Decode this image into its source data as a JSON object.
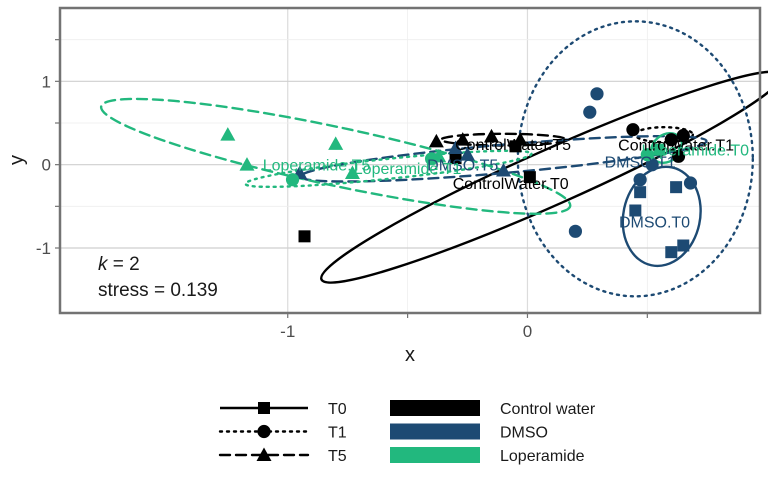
{
  "chart_data": {
    "type": "scatter",
    "xlabel": "x",
    "ylabel": "y",
    "xlim": [
      -1.95,
      0.97
    ],
    "ylim": [
      -1.78,
      1.88
    ],
    "x_ticks": [
      -1,
      -0.5,
      0,
      0.5
    ],
    "x_tick_labels": [
      "-1",
      "",
      "0",
      ""
    ],
    "y_ticks": [
      -1,
      -0.5,
      0,
      0.5,
      1,
      1.5
    ],
    "y_tick_labels": [
      "-1",
      "",
      "0",
      "",
      "1",
      ""
    ],
    "grid": true,
    "colors": {
      "Control water": "#000000",
      "DMSO": "#1d4a73",
      "Loperamide": "#22b87e"
    },
    "annotations": {
      "k": "k",
      "k_value": " = 2",
      "stress": "stress = 0.139"
    },
    "legend": {
      "placement": "bottom",
      "times": [
        {
          "label": "T0",
          "shape": "square",
          "linestyle": "solid"
        },
        {
          "label": "T1",
          "shape": "circle",
          "linestyle": "dotted"
        },
        {
          "label": "T5",
          "shape": "triangle",
          "linestyle": "dashed"
        }
      ],
      "treatments": [
        {
          "label": "Control water",
          "color": "#000000"
        },
        {
          "label": "DMSO",
          "color": "#1d4a73"
        },
        {
          "label": "Loperamide",
          "color": "#22b87e"
        }
      ]
    },
    "points": [
      {
        "group": "Control water",
        "time": "T0",
        "x": -0.93,
        "y": -0.86
      },
      {
        "group": "Control water",
        "time": "T0",
        "x": -0.3,
        "y": 0.08
      },
      {
        "group": "Control water",
        "time": "T0",
        "x": -0.05,
        "y": 0.22
      },
      {
        "group": "Control water",
        "time": "T0",
        "x": 0.01,
        "y": -0.15
      },
      {
        "group": "Control water",
        "time": "T1",
        "x": 0.44,
        "y": 0.42
      },
      {
        "group": "Control water",
        "time": "T1",
        "x": 0.6,
        "y": 0.3
      },
      {
        "group": "Control water",
        "time": "T1",
        "x": 0.63,
        "y": 0.1
      },
      {
        "group": "Control water",
        "time": "T1",
        "x": 0.65,
        "y": 0.35
      },
      {
        "group": "Control water",
        "time": "T5",
        "x": -0.38,
        "y": 0.28
      },
      {
        "group": "Control water",
        "time": "T5",
        "x": -0.27,
        "y": 0.3
      },
      {
        "group": "Control water",
        "time": "T5",
        "x": -0.15,
        "y": 0.34
      },
      {
        "group": "Control water",
        "time": "T5",
        "x": -0.03,
        "y": 0.3
      },
      {
        "group": "DMSO",
        "time": "T0",
        "x": 0.45,
        "y": -0.55
      },
      {
        "group": "DMSO",
        "time": "T0",
        "x": 0.47,
        "y": -0.33
      },
      {
        "group": "DMSO",
        "time": "T0",
        "x": 0.6,
        "y": -1.05
      },
      {
        "group": "DMSO",
        "time": "T0",
        "x": 0.62,
        "y": -0.27
      },
      {
        "group": "DMSO",
        "time": "T0",
        "x": 0.65,
        "y": -0.97
      },
      {
        "group": "DMSO",
        "time": "T1",
        "x": 0.2,
        "y": -0.8
      },
      {
        "group": "DMSO",
        "time": "T1",
        "x": 0.26,
        "y": 0.63
      },
      {
        "group": "DMSO",
        "time": "T1",
        "x": 0.29,
        "y": 0.85
      },
      {
        "group": "DMSO",
        "time": "T1",
        "x": 0.47,
        "y": -0.18
      },
      {
        "group": "DMSO",
        "time": "T1",
        "x": 0.52,
        "y": 0.0
      },
      {
        "group": "DMSO",
        "time": "T1",
        "x": 0.68,
        "y": -0.22
      },
      {
        "group": "DMSO",
        "time": "T5",
        "x": -0.95,
        "y": -0.1
      },
      {
        "group": "DMSO",
        "time": "T5",
        "x": -0.3,
        "y": 0.2
      },
      {
        "group": "DMSO",
        "time": "T5",
        "x": -0.25,
        "y": 0.12
      },
      {
        "group": "DMSO",
        "time": "T5",
        "x": -0.1,
        "y": -0.07
      },
      {
        "group": "Loperamide",
        "time": "T0",
        "x": 0.55,
        "y": 0.18
      },
      {
        "group": "Loperamide",
        "time": "T1",
        "x": -0.98,
        "y": -0.18
      },
      {
        "group": "Loperamide",
        "time": "T1",
        "x": -0.4,
        "y": 0.07
      },
      {
        "group": "Loperamide",
        "time": "T1",
        "x": 0.5,
        "y": 0.12
      },
      {
        "group": "Loperamide",
        "time": "T5",
        "x": -1.25,
        "y": 0.36
      },
      {
        "group": "Loperamide",
        "time": "T5",
        "x": -1.17,
        "y": 0.0
      },
      {
        "group": "Loperamide",
        "time": "T5",
        "x": -0.8,
        "y": 0.25
      },
      {
        "group": "Loperamide",
        "time": "T5",
        "x": -0.73,
        "y": -0.1
      },
      {
        "group": "Loperamide",
        "time": "T5",
        "x": -0.37,
        "y": 0.1
      }
    ],
    "ellipses": [
      {
        "group": "Control water",
        "time": "T0",
        "cx": 0.1,
        "cy": -0.15,
        "rx": 1.05,
        "ry": 0.33,
        "angle": 24
      },
      {
        "group": "Control water",
        "time": "T1",
        "cx": 0.57,
        "cy": 0.36,
        "rx": 0.12,
        "ry": 0.09,
        "angle": 0
      },
      {
        "group": "Control water",
        "time": "T5",
        "cx": -0.1,
        "cy": 0.3,
        "rx": 0.26,
        "ry": 0.07,
        "angle": 0
      },
      {
        "group": "DMSO",
        "time": "T0",
        "cx": 0.56,
        "cy": -0.62,
        "rx": 0.16,
        "ry": 0.6,
        "angle": -12
      },
      {
        "group": "DMSO",
        "time": "T1",
        "cx": 0.45,
        "cy": 0.07,
        "rx": 0.49,
        "ry": 1.65,
        "angle": 0
      },
      {
        "group": "DMSO",
        "time": "T5",
        "cx": -0.1,
        "cy": 0.07,
        "rx": 0.85,
        "ry": 0.17,
        "angle": 5
      },
      {
        "group": "Loperamide",
        "time": "T1",
        "cx": -0.58,
        "cy": -0.05,
        "rx": 0.6,
        "ry": 0.12,
        "angle": 6
      },
      {
        "group": "Loperamide",
        "time": "T5",
        "cx": -0.8,
        "cy": 0.1,
        "rx": 1.0,
        "ry": 0.35,
        "angle": -12
      },
      {
        "group": "Loperamide",
        "time": "T0",
        "cx": 0.58,
        "cy": 0.2,
        "rx": 0.07,
        "ry": 0.16,
        "angle": 40
      }
    ],
    "centroid_labels": [
      {
        "text": "ControlWater.T5",
        "group": "Control water",
        "x": -0.06,
        "y": 0.25
      },
      {
        "text": "ControlWater.T0",
        "group": "Control water",
        "x": -0.07,
        "y": -0.22
      },
      {
        "text": "ControlWater.T1",
        "group": "Control water",
        "x": 0.62,
        "y": 0.24
      },
      {
        "text": "DMSO.T1",
        "group": "DMSO",
        "x": 0.47,
        "y": 0.04
      },
      {
        "text": "DMSO.T0",
        "group": "DMSO",
        "x": 0.53,
        "y": -0.68
      },
      {
        "text": "DMSO.T5",
        "group": "DMSO",
        "x": -0.27,
        "y": 0.0
      },
      {
        "text": "Loperamide.T5",
        "group": "Loperamide",
        "x": -0.88,
        "y": 0.0
      },
      {
        "text": "Loperamide.T1",
        "group": "Loperamide",
        "x": -0.5,
        "y": -0.04
      },
      {
        "text": "Loperamide.T0",
        "group": "Loperamide",
        "x": 0.7,
        "y": 0.18
      }
    ]
  }
}
